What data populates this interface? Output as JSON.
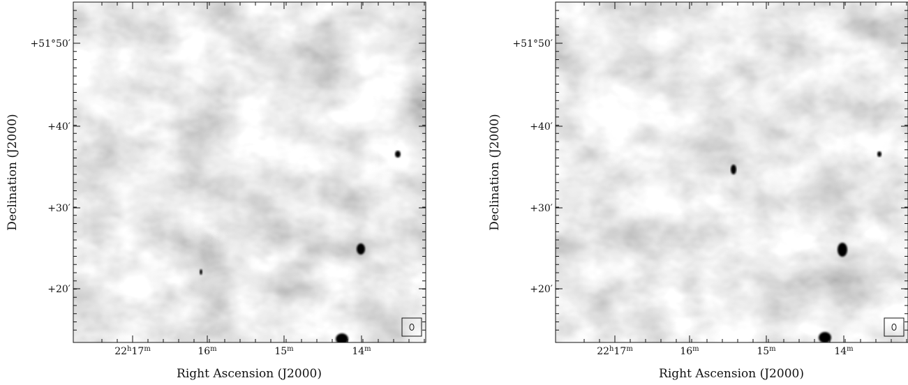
{
  "panels": [
    {
      "x_label": "Right Ascension (J2000)",
      "y_label": "Declination (J2000)",
      "y_ticks": [
        "+51°50′",
        "+40′",
        "+30′",
        "+20′"
      ],
      "x_ticks": [
        [
          "22",
          "h",
          "17",
          "m"
        ],
        [
          "16",
          "m"
        ],
        [
          "15",
          "m"
        ],
        [
          "14",
          "m"
        ]
      ]
    },
    {
      "x_label": "Right Ascension (J2000)",
      "y_label": "Declination (J2000)",
      "y_ticks": [
        "+51°50′",
        "+40′",
        "+30′",
        "+20′"
      ],
      "x_ticks": [
        [
          "22",
          "h",
          "17",
          "m"
        ],
        [
          "16",
          "m"
        ],
        [
          "15",
          "m"
        ],
        [
          "14",
          "m"
        ]
      ]
    }
  ]
}
